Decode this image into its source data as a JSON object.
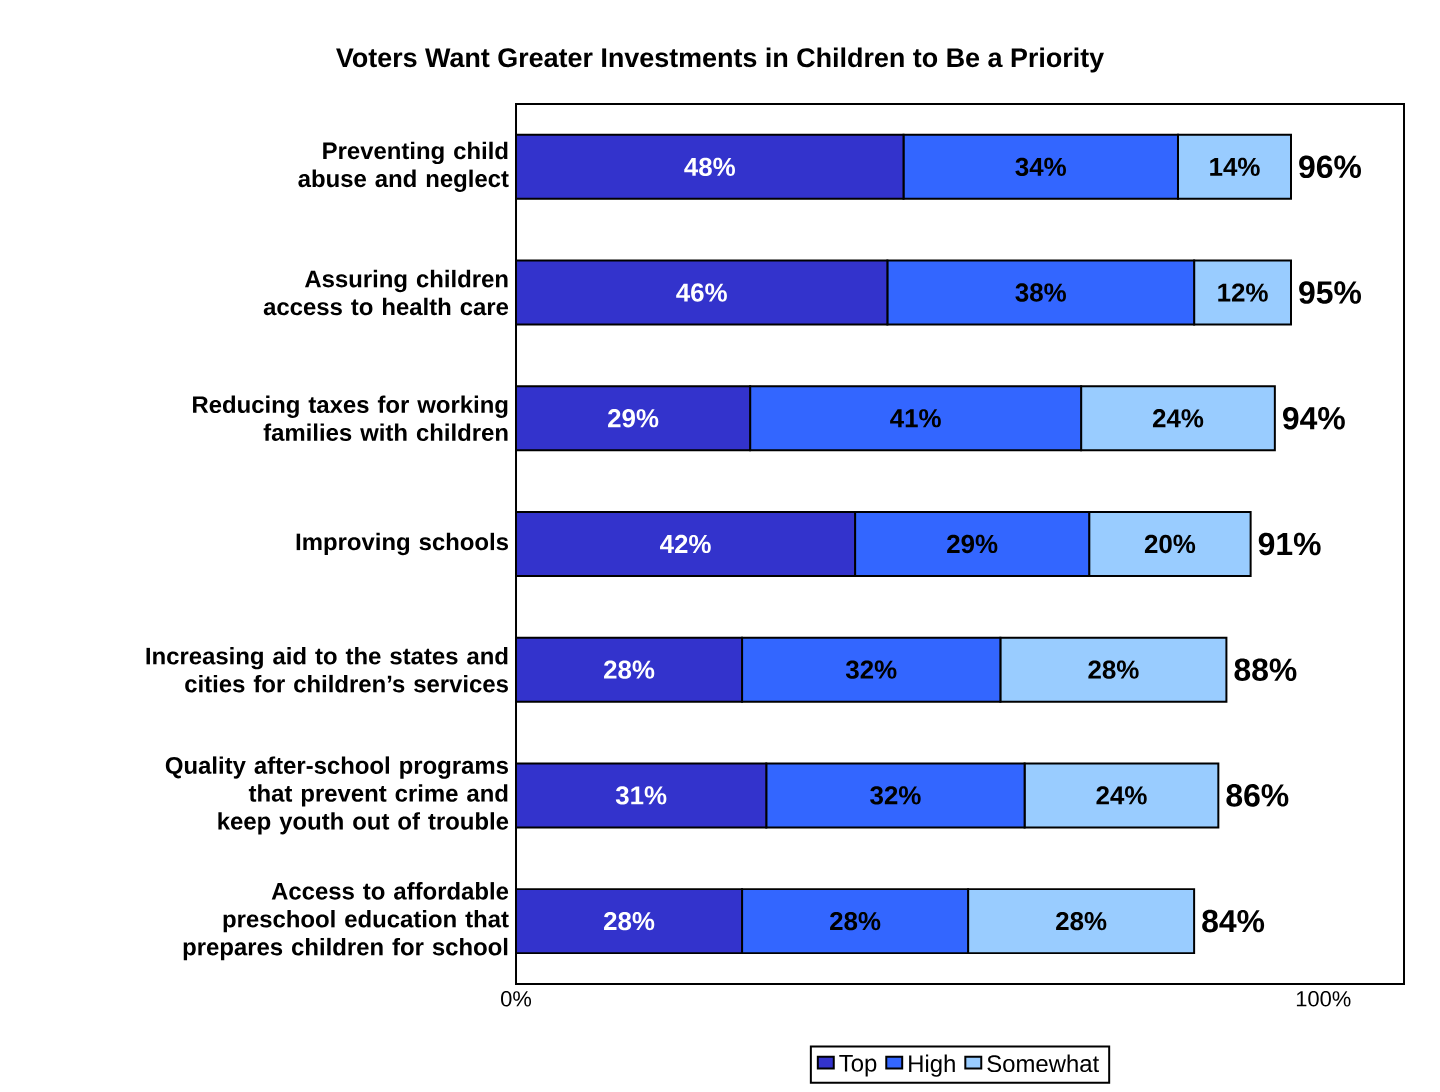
{
  "chart_data": {
    "type": "bar",
    "orientation": "horizontal",
    "stacked": true,
    "title": "Voters Want Greater Investments in Children to Be a Priority",
    "categories": [
      "Preventing child abuse and neglect",
      "Assuring children access to health care",
      "Reducing taxes for working families with children",
      "Improving schools",
      "Increasing aid to the states and cities for children’s services",
      "Quality after-school programs that prevent crime and keep youth out of trouble",
      "Access to affordable preschool education that prepares children for school"
    ],
    "series": [
      {
        "name": "Top",
        "color": "#3333cc",
        "values": [
          48,
          46,
          29,
          42,
          28,
          31,
          28
        ],
        "value_labels": [
          "48%",
          "46%",
          "29%",
          "42%",
          "28%",
          "31%",
          "28%"
        ]
      },
      {
        "name": "High",
        "color": "#3366ff",
        "values": [
          34,
          38,
          41,
          29,
          32,
          32,
          28
        ],
        "value_labels": [
          "34%",
          "38%",
          "41%",
          "29%",
          "32%",
          "32%",
          "28%"
        ]
      },
      {
        "name": "Somewhat",
        "color": "#99ccff",
        "values": [
          14,
          12,
          24,
          20,
          28,
          24,
          28
        ],
        "value_labels": [
          "14%",
          "12%",
          "24%",
          "20%",
          "28%",
          "24%",
          "28%"
        ]
      }
    ],
    "totals": [
      "96%",
      "95%",
      "94%",
      "91%",
      "88%",
      "86%",
      "84%"
    ],
    "xlim": [
      0,
      110
    ],
    "xticks": [
      {
        "value": 0,
        "label": "0%"
      },
      {
        "value": 100,
        "label": "100%"
      }
    ],
    "legend": "bottom",
    "grid": false
  }
}
